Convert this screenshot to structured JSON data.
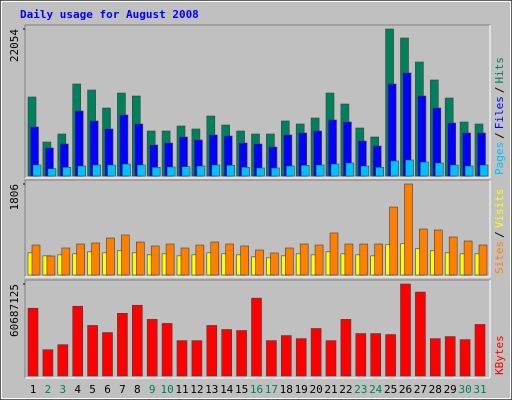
{
  "title": "Daily usage for August 2008",
  "legend_separator": "/",
  "chart_data": [
    {
      "type": "bar",
      "ylim": [
        0,
        22054
      ],
      "yticks": [
        22054
      ],
      "series": [
        {
          "name": "Pages",
          "color": "#00c0ff",
          "values": [
            1650,
            1100,
            1300,
            1500,
            1650,
            1650,
            1800,
            1650,
            1300,
            1350,
            1400,
            1500,
            1650,
            1600,
            1300,
            1200,
            1200,
            1500,
            1600,
            1650,
            1800,
            1950,
            1500,
            1300,
            2250,
            2400,
            2100,
            1950,
            1650,
            1500,
            1650
          ]
        },
        {
          "name": "Files",
          "color": "#0000ff",
          "values": [
            7351,
            4201,
            4801,
            9751,
            8251,
            7051,
            9151,
            7801,
            4651,
            4951,
            5851,
            5401,
            6151,
            6001,
            4951,
            4801,
            4351,
            6151,
            6451,
            6751,
            8401,
            8101,
            5251,
            4501,
            13802,
            15452,
            12002,
            10202,
            7951,
            6451,
            6451
          ]
        },
        {
          "name": "Hits",
          "color": "#00805c",
          "values": [
            11853,
            5101,
            6301,
            13803,
            12902,
            10202,
            12452,
            12002,
            6751,
            6751,
            7501,
            7051,
            9002,
            7651,
            6751,
            6301,
            6301,
            8252,
            7801,
            8702,
            12452,
            10802,
            7201,
            5851,
            22054,
            20704,
            17103,
            14403,
            11702,
            8102,
            7801
          ]
        }
      ]
    },
    {
      "type": "bar",
      "ylim": [
        0,
        1806
      ],
      "yticks": [
        1806
      ],
      "series": [
        {
          "name": "Sites",
          "color": "#ff8000",
          "values": [
            595,
            377,
            536,
            615,
            635,
            734,
            794,
            655,
            576,
            615,
            536,
            595,
            655,
            615,
            576,
            496,
            437,
            536,
            615,
            595,
            834,
            615,
            615,
            615,
            1349,
            1806,
            913,
            893,
            754,
            675,
            595
          ]
        },
        {
          "name": "Visits",
          "color": "#ffff00",
          "values": [
            440,
            380,
            400,
            420,
            460,
            440,
            480,
            440,
            400,
            420,
            380,
            400,
            440,
            420,
            400,
            360,
            340,
            380,
            420,
            400,
            460,
            420,
            400,
            380,
            600,
            620,
            520,
            480,
            440,
            420,
            420
          ]
        }
      ]
    },
    {
      "type": "bar",
      "ylim": [
        0,
        60687125
      ],
      "yticks": [
        60687125
      ],
      "categories": [
        "1",
        "2",
        "3",
        "4",
        "5",
        "6",
        "7",
        "8",
        "9",
        "10",
        "11",
        "12",
        "13",
        "14",
        "15",
        "16",
        "17",
        "18",
        "19",
        "20",
        "21",
        "22",
        "23",
        "24",
        "25",
        "26",
        "27",
        "28",
        "29",
        "30",
        "31"
      ],
      "category_colors": [
        "#000000",
        "#00805c",
        "#00805c",
        "#000000",
        "#000000",
        "#000000",
        "#000000",
        "#000000",
        "#00805c",
        "#00805c",
        "#000000",
        "#000000",
        "#000000",
        "#000000",
        "#000000",
        "#00805c",
        "#00805c",
        "#000000",
        "#000000",
        "#000000",
        "#000000",
        "#000000",
        "#00805c",
        "#00805c",
        "#000000",
        "#000000",
        "#000000",
        "#000000",
        "#000000",
        "#00805c",
        "#00805c"
      ],
      "series": [
        {
          "name": "KBytes",
          "color": "#ff0000",
          "values": [
            44681764,
            17339192,
            20673652,
            46015548,
            33344600,
            28676356,
            41347304,
            46682440,
            37345952,
            34678384,
            23341220,
            23341220,
            33344600,
            30677032,
            30010140,
            51350684,
            23341220,
            26675680,
            24674004,
            31343924,
            23341220,
            37345952,
            28009464,
            28009464,
            27342572,
            60687125,
            55352036,
            24674004,
            26008788,
            24008112,
            34011492
          ]
        }
      ]
    }
  ]
}
